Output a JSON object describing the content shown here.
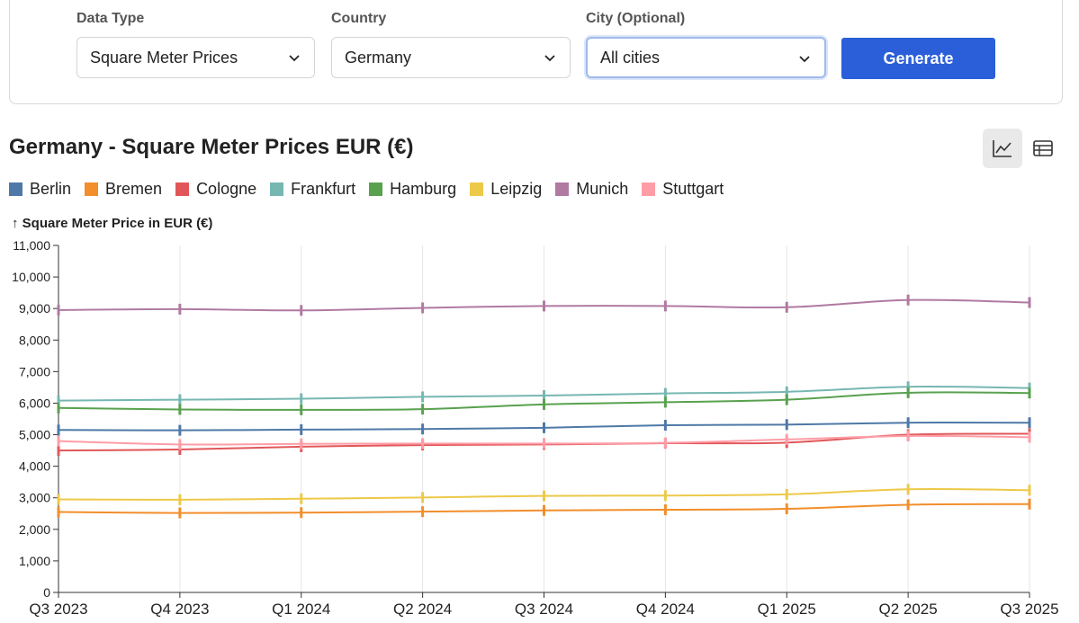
{
  "filters": {
    "data_type": {
      "label": "Data Type",
      "value": "Square Meter Prices"
    },
    "country": {
      "label": "Country",
      "value": "Germany"
    },
    "city": {
      "label": "City (Optional)",
      "value": "All cities"
    },
    "generate_label": "Generate"
  },
  "view_toggle": {
    "active": "line-chart",
    "icons": [
      "line-chart-icon",
      "table-icon"
    ]
  },
  "colors": {
    "accent": "#2b5fd9",
    "series": {
      "Berlin": "#4e79a7",
      "Bremen": "#f28e2b",
      "Cologne": "#e15759",
      "Frankfurt": "#76b7b2",
      "Hamburg": "#59a14f",
      "Leipzig": "#edc948",
      "Munich": "#b07aa1",
      "Stuttgart": "#ff9da7"
    }
  },
  "chart_data": {
    "type": "line",
    "title": "Germany - Square Meter Prices EUR (€)",
    "ylabel": "↑ Square Meter Price in EUR (€)",
    "xlabel": "",
    "ylim": [
      0,
      11000
    ],
    "yticks": [
      0,
      1000,
      2000,
      3000,
      4000,
      5000,
      6000,
      7000,
      8000,
      9000,
      10000,
      11000
    ],
    "ytick_labels": [
      "0",
      "1,000",
      "2,000",
      "3,000",
      "4,000",
      "5,000",
      "6,000",
      "7,000",
      "8,000",
      "9,000",
      "10,000",
      "11,000"
    ],
    "grid": "vertical",
    "legend_position": "top-left",
    "categories": [
      "Q3 2023",
      "Q4 2023",
      "Q1 2024",
      "Q2 2024",
      "Q3 2024",
      "Q4 2024",
      "Q1 2025",
      "Q2 2025",
      "Q3 2025"
    ],
    "series": [
      {
        "name": "Berlin",
        "values": [
          5150,
          5140,
          5160,
          5180,
          5220,
          5300,
          5320,
          5380,
          5380
        ]
      },
      {
        "name": "Bremen",
        "values": [
          2550,
          2520,
          2530,
          2560,
          2600,
          2620,
          2650,
          2780,
          2800
        ]
      },
      {
        "name": "Cologne",
        "values": [
          4500,
          4530,
          4620,
          4670,
          4690,
          4730,
          4750,
          5000,
          5030
        ]
      },
      {
        "name": "Frankfurt",
        "values": [
          6080,
          6110,
          6140,
          6200,
          6240,
          6310,
          6360,
          6520,
          6480
        ]
      },
      {
        "name": "Hamburg",
        "values": [
          5850,
          5800,
          5790,
          5810,
          5960,
          6030,
          6110,
          6330,
          6320
        ]
      },
      {
        "name": "Leipzig",
        "values": [
          2950,
          2940,
          2970,
          3010,
          3060,
          3070,
          3110,
          3270,
          3240
        ]
      },
      {
        "name": "Munich",
        "values": [
          8950,
          8980,
          8940,
          9020,
          9080,
          9080,
          9040,
          9270,
          9190
        ]
      },
      {
        "name": "Stuttgart",
        "values": [
          4800,
          4690,
          4710,
          4720,
          4720,
          4740,
          4850,
          4960,
          4920
        ]
      }
    ]
  }
}
